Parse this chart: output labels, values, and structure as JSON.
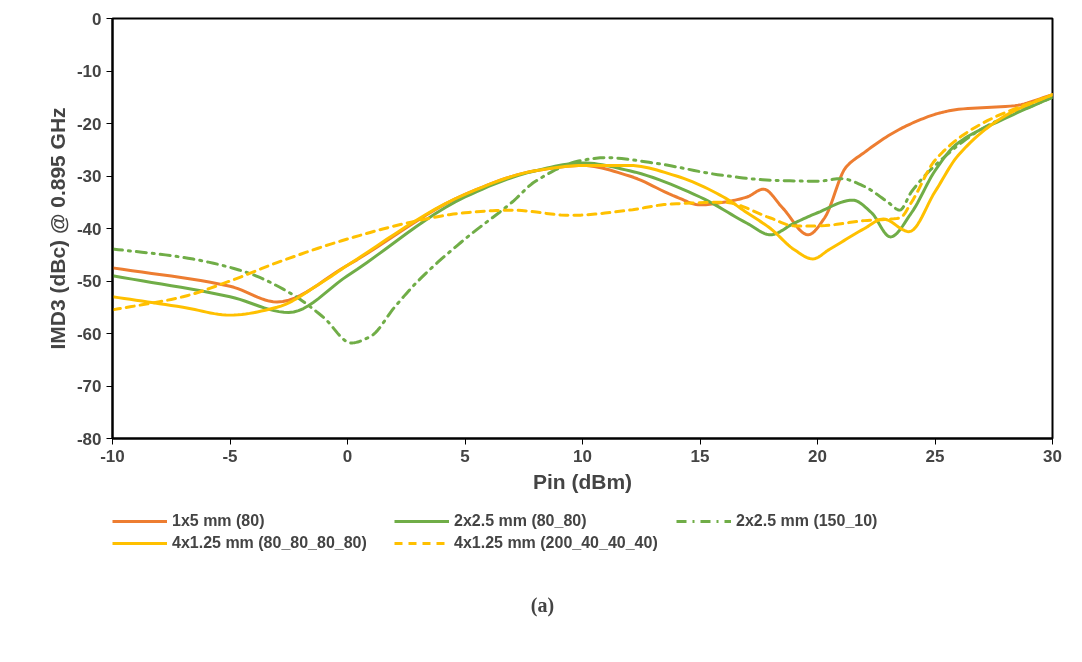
{
  "chart_data": {
    "type": "line",
    "xlabel": "Pin (dBm)",
    "ylabel": "IMD3 (dBc) @ 0.895 GHz",
    "xlim": [
      -10,
      30
    ],
    "ylim": [
      -80,
      0
    ],
    "xticks": [
      -10,
      -5,
      0,
      5,
      10,
      15,
      20,
      25,
      30
    ],
    "yticks": [
      0,
      -10,
      -20,
      -30,
      -40,
      -50,
      -60,
      -70,
      -80
    ],
    "grid": false,
    "legend": "bottom",
    "marker": "none",
    "annotations": [
      "(a)"
    ],
    "series": [
      {
        "name": "1x5 mm (80)",
        "color": "#ed7d31",
        "line_style": "solid",
        "x": [
          -10,
          -5,
          -3,
          0,
          5,
          8,
          10,
          12,
          14,
          15,
          16,
          17,
          17.7,
          18.5,
          19.6,
          20.3,
          21.2,
          22,
          23.1,
          24,
          25.2,
          26,
          28.4,
          30
        ],
        "values": [
          -47.5,
          -51,
          -54,
          -47,
          -33.5,
          -29,
          -28,
          -30,
          -34,
          -35.5,
          -35,
          -34,
          -32.5,
          -36,
          -41.2,
          -38,
          -28.4,
          -25.5,
          -22.1,
          -20,
          -18,
          -17.3,
          -16.6,
          -14.5
        ]
      },
      {
        "name": "2x2.5 mm (80_80)",
        "color": "#70ad47",
        "line_style": "solid",
        "x": [
          -10,
          -5,
          -2.5,
          0,
          5,
          8,
          10,
          12,
          15,
          17,
          18,
          19,
          20,
          21.5,
          22.3,
          23.1,
          24,
          25,
          25.9,
          28,
          30
        ],
        "values": [
          -49,
          -53,
          -56,
          -49,
          -34,
          -29,
          -27.5,
          -29,
          -34,
          -39,
          -41.2,
          -39,
          -37,
          -34.6,
          -37,
          -41.6,
          -37,
          -29,
          -24,
          -19,
          -15
        ]
      },
      {
        "name": "2x2.5 mm (150_10)",
        "color": "#70ad47",
        "line_style": "dashdot",
        "x": [
          -10,
          -7,
          -4.4,
          -2.4,
          -1,
          0.15,
          1,
          2,
          3,
          5,
          7,
          8,
          10,
          11,
          13,
          16,
          18,
          20,
          21,
          22,
          23,
          23.5,
          24,
          25,
          27,
          30
        ],
        "values": [
          -43.9,
          -45.5,
          -48.2,
          -52.4,
          -57,
          -61.8,
          -60.5,
          -55,
          -50,
          -42,
          -35,
          -31,
          -27,
          -26.5,
          -27.5,
          -29.9,
          -30.8,
          -31,
          -30.5,
          -32,
          -35,
          -36.5,
          -33,
          -28,
          -21,
          -15
        ]
      },
      {
        "name": "4x1.25 mm (80_80_80_80)",
        "color": "#ffc000",
        "line_style": "solid",
        "x": [
          -10,
          -7,
          -5,
          -3,
          -1,
          0,
          5,
          8,
          10,
          12,
          14,
          16,
          17,
          18,
          19,
          19.8,
          20.5,
          22,
          22.8,
          23.9,
          25,
          26,
          28,
          30
        ],
        "values": [
          -53,
          -55,
          -56.5,
          -55,
          -50,
          -47,
          -33.5,
          -29,
          -28,
          -28,
          -30,
          -34,
          -37,
          -40,
          -44,
          -45.8,
          -44,
          -40,
          -38.2,
          -40.6,
          -33,
          -26,
          -18.5,
          -14.5
        ]
      },
      {
        "name": "4x1.25 mm (200_40_40_40)",
        "color": "#ffc000",
        "line_style": "dashed",
        "x": [
          -10,
          -7,
          -5,
          -3,
          0,
          3,
          5,
          7,
          9.5,
          12,
          13.6,
          16,
          18,
          19,
          20,
          22,
          23.5,
          24,
          25,
          27,
          30
        ],
        "values": [
          -55.5,
          -53,
          -50,
          -46.5,
          -42,
          -38.5,
          -37,
          -36.5,
          -37.5,
          -36.5,
          -35.4,
          -35,
          -38,
          -39.5,
          -39.5,
          -38.5,
          -38,
          -35,
          -27,
          -20,
          -14.5
        ]
      }
    ]
  }
}
